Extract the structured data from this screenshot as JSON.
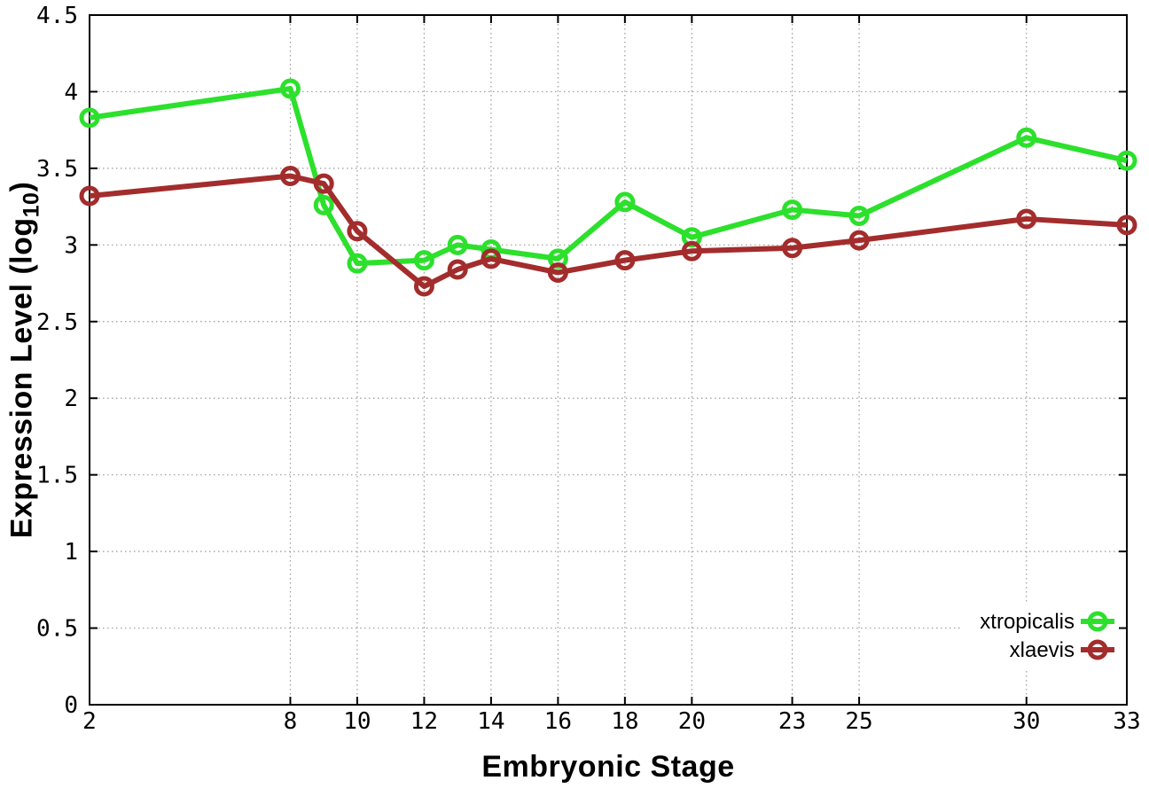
{
  "chart_data": {
    "type": "line",
    "title": "",
    "xlabel": "Embryonic Stage",
    "ylabel": {
      "main": "Expression Level (log",
      "sub": "10",
      "end": ")"
    },
    "x": [
      2,
      8,
      9,
      10,
      12,
      13,
      14,
      16,
      18,
      20,
      23,
      25,
      30,
      33
    ],
    "series": [
      {
        "name": "xtropicalis",
        "color": "#2ce02c",
        "marker": "open-circle",
        "values": [
          3.83,
          4.02,
          3.26,
          2.88,
          2.9,
          3.0,
          2.97,
          2.91,
          3.28,
          3.05,
          3.23,
          3.19,
          3.7,
          3.55
        ]
      },
      {
        "name": "xlaevis",
        "color": "#a32c2c",
        "marker": "open-circle",
        "values": [
          3.32,
          3.45,
          3.4,
          3.09,
          2.73,
          2.84,
          2.91,
          2.82,
          2.9,
          2.96,
          2.98,
          3.03,
          3.17,
          3.13
        ]
      }
    ],
    "xlim": [
      2,
      33
    ],
    "ylim": [
      0,
      4.5
    ],
    "xticks": [
      2,
      8,
      10,
      12,
      14,
      16,
      18,
      20,
      23,
      25,
      30,
      33
    ],
    "ytick_values": [
      0,
      0.5,
      1,
      1.5,
      2,
      2.5,
      3,
      3.5,
      4,
      4.5
    ],
    "ytick_labels": [
      "0",
      "0.5",
      "1",
      "1.5",
      "2",
      "2.5",
      "3",
      "3.5",
      "4",
      "4.5"
    ],
    "grid": true,
    "legend_position": "bottom-right",
    "colors": {
      "background": "#ffffff",
      "axis": "#000000",
      "grid": "#9a9a9a",
      "text": "#000000"
    }
  }
}
